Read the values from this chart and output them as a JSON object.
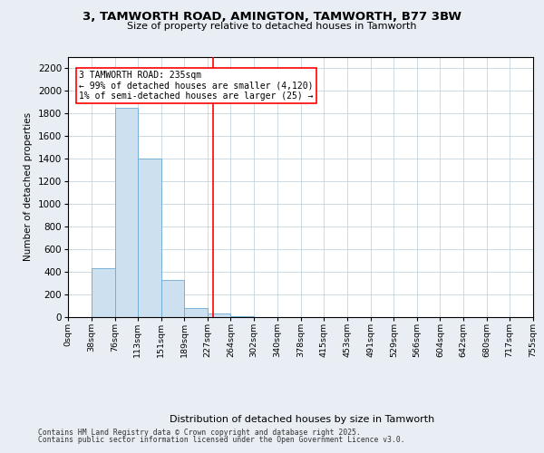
{
  "title1": "3, TAMWORTH ROAD, AMINGTON, TAMWORTH, B77 3BW",
  "title2": "Size of property relative to detached houses in Tamworth",
  "xlabel": "Distribution of detached houses by size in Tamworth",
  "ylabel": "Number of detached properties",
  "bin_edges": [
    0,
    38,
    76,
    113,
    151,
    189,
    227,
    264,
    302,
    340,
    378,
    415,
    453,
    491,
    529,
    566,
    604,
    642,
    680,
    717,
    755
  ],
  "bar_heights": [
    0,
    430,
    1850,
    1400,
    330,
    80,
    30,
    5,
    0,
    0,
    0,
    0,
    0,
    0,
    0,
    0,
    0,
    0,
    0,
    0
  ],
  "bar_color": "#cce0f0",
  "bar_edge_color": "#6aaad4",
  "vline_x": 235,
  "vline_color": "red",
  "annotation_text": "3 TAMWORTH ROAD: 235sqm\n← 99% of detached houses are smaller (4,120)\n1% of semi-detached houses are larger (25) →",
  "annotation_box_color": "white",
  "annotation_box_edge_color": "red",
  "ylim": [
    0,
    2300
  ],
  "yticks": [
    0,
    200,
    400,
    600,
    800,
    1000,
    1200,
    1400,
    1600,
    1800,
    2000,
    2200
  ],
  "background_color": "#e8eef4",
  "plot_background": "#ffffff",
  "footer1": "Contains HM Land Registry data © Crown copyright and database right 2025.",
  "footer2": "Contains public sector information licensed under the Open Government Licence v3.0.",
  "tick_labels": [
    "0sqm",
    "38sqm",
    "76sqm",
    "113sqm",
    "151sqm",
    "189sqm",
    "227sqm",
    "264sqm",
    "302sqm",
    "340sqm",
    "378sqm",
    "415sqm",
    "453sqm",
    "491sqm",
    "529sqm",
    "566sqm",
    "604sqm",
    "642sqm",
    "680sqm",
    "717sqm",
    "755sqm"
  ]
}
